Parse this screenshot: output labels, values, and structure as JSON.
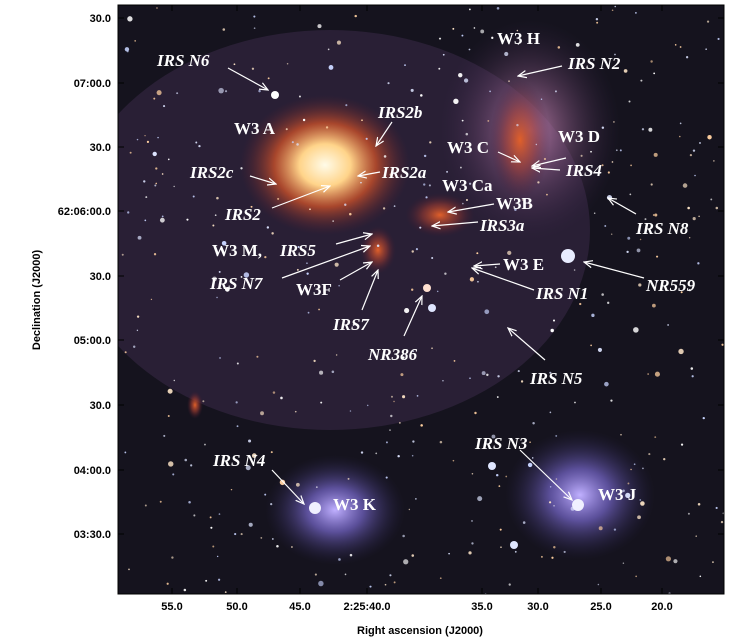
{
  "axes": {
    "x": {
      "label": "Right ascension (J2000)",
      "ticks": [
        "55.0",
        "50.0",
        "45.0",
        "2:25:40.0",
        "35.0",
        "30.0",
        "25.0",
        "20.0"
      ]
    },
    "y": {
      "label": "Declination (J2000)",
      "ticks": [
        "30.0",
        "07:00.0",
        "30.0",
        "62:06:00.0",
        "30.0",
        "05:00.0",
        "30.0",
        "04:00.0",
        "03:30.0"
      ]
    }
  },
  "annotations": [
    "IRS N6",
    "W3 H",
    "IRS N2",
    "IRS2b",
    "W3 A",
    "W3 D",
    "W3 C",
    "IRS2c",
    "IRS2a",
    "IRS4",
    "W3 Ca",
    "W3B",
    "IRS2",
    "IRS3a",
    "IRS N8",
    "W3 M,",
    "IRS5",
    "IRS N7",
    "W3F",
    "W3 E",
    "IRS N1",
    "NR559",
    "IRS7",
    "NR386",
    "IRS N5",
    "IRS N4",
    "IRS N3",
    "W3 K",
    "W3 J"
  ]
}
